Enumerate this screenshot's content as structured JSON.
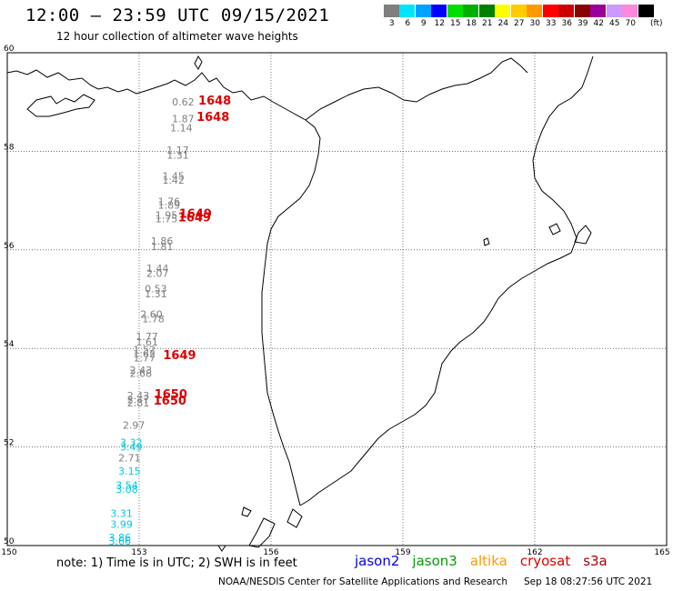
{
  "header": {
    "title": "12:00 – 23:59 UTC 09/15/2021",
    "subtitle": "12 hour collection of altimeter wave heights"
  },
  "color_scale": {
    "unit": "(ft)",
    "bins": [
      {
        "label": "3",
        "color": "#7f7f7f"
      },
      {
        "label": "6",
        "color": "#00e5ff"
      },
      {
        "label": "9",
        "color": "#00a2ff"
      },
      {
        "label": "12",
        "color": "#0000ff"
      },
      {
        "label": "15",
        "color": "#00dd00"
      },
      {
        "label": "18",
        "color": "#00b000"
      },
      {
        "label": "21",
        "color": "#008000"
      },
      {
        "label": "24",
        "color": "#ffff00"
      },
      {
        "label": "27",
        "color": "#ffcc00"
      },
      {
        "label": "30",
        "color": "#ff9900"
      },
      {
        "label": "33",
        "color": "#ff0000"
      },
      {
        "label": "36",
        "color": "#cc0000"
      },
      {
        "label": "39",
        "color": "#880000"
      },
      {
        "label": "42",
        "color": "#990099"
      },
      {
        "label": "45",
        "color": "#cc99ff"
      },
      {
        "label": "70",
        "color": "#ff88dd"
      },
      {
        "label": "",
        "color": "#000000"
      }
    ]
  },
  "axes": {
    "lon_ticks": [
      "150",
      "153",
      "156",
      "159",
      "162",
      "165"
    ],
    "lat_ticks": [
      "60",
      "58",
      "56",
      "54",
      "52",
      "50"
    ],
    "lon_range": [
      150,
      165
    ],
    "lat_range": [
      50,
      60
    ],
    "grid": true
  },
  "observations": [
    {
      "text": "0.62",
      "lon": 154.0,
      "lat": 58.93,
      "color": "#7f7f7f"
    },
    {
      "text": "1.87",
      "lon": 154.0,
      "lat": 58.59,
      "color": "#7f7f7f"
    },
    {
      "text": "1.14",
      "lon": 153.96,
      "lat": 58.4,
      "color": "#7f7f7f"
    },
    {
      "text": "1.17",
      "lon": 153.88,
      "lat": 57.95,
      "color": "#7f7f7f"
    },
    {
      "text": "1.31",
      "lon": 153.88,
      "lat": 57.85,
      "color": "#7f7f7f"
    },
    {
      "text": "1.45",
      "lon": 153.78,
      "lat": 57.43,
      "color": "#7f7f7f"
    },
    {
      "text": "1.42",
      "lon": 153.78,
      "lat": 57.34,
      "color": "#7f7f7f"
    },
    {
      "text": "1.76",
      "lon": 153.68,
      "lat": 56.91,
      "color": "#7f7f7f"
    },
    {
      "text": "1.89",
      "lon": 153.68,
      "lat": 56.84,
      "color": "#7f7f7f"
    },
    {
      "text": "1.95",
      "lon": 153.62,
      "lat": 56.63,
      "color": "#7f7f7f"
    },
    {
      "text": "1.75",
      "lon": 153.62,
      "lat": 56.56,
      "color": "#7f7f7f"
    },
    {
      "text": "1.86",
      "lon": 153.52,
      "lat": 56.11,
      "color": "#7f7f7f"
    },
    {
      "text": "1.81",
      "lon": 153.52,
      "lat": 56.0,
      "color": "#7f7f7f"
    },
    {
      "text": "1.44",
      "lon": 153.42,
      "lat": 55.55,
      "color": "#7f7f7f"
    },
    {
      "text": "2.07",
      "lon": 153.42,
      "lat": 55.45,
      "color": "#7f7f7f"
    },
    {
      "text": "0.53",
      "lon": 153.38,
      "lat": 55.14,
      "color": "#7f7f7f"
    },
    {
      "text": "1.31",
      "lon": 153.38,
      "lat": 55.04,
      "color": "#7f7f7f"
    },
    {
      "text": "2.60",
      "lon": 153.28,
      "lat": 54.62,
      "color": "#7f7f7f"
    },
    {
      "text": "1.78",
      "lon": 153.32,
      "lat": 54.53,
      "color": "#7f7f7f"
    },
    {
      "text": "1.77",
      "lon": 153.18,
      "lat": 54.17,
      "color": "#7f7f7f"
    },
    {
      "text": "1.61",
      "lon": 153.18,
      "lat": 54.06,
      "color": "#7f7f7f"
    },
    {
      "text": "1.52",
      "lon": 153.12,
      "lat": 53.9,
      "color": "#7f7f7f"
    },
    {
      "text": "1.62",
      "lon": 153.12,
      "lat": 53.82,
      "color": "#7f7f7f"
    },
    {
      "text": "1.77",
      "lon": 153.12,
      "lat": 53.74,
      "color": "#7f7f7f"
    },
    {
      "text": "2.43",
      "lon": 153.04,
      "lat": 53.49,
      "color": "#7f7f7f"
    },
    {
      "text": "2.68",
      "lon": 153.04,
      "lat": 53.42,
      "color": "#7f7f7f"
    },
    {
      "text": "2.43",
      "lon": 152.98,
      "lat": 52.97,
      "color": "#7f7f7f"
    },
    {
      "text": "2.47",
      "lon": 152.98,
      "lat": 52.89,
      "color": "#7f7f7f"
    },
    {
      "text": "2.81",
      "lon": 152.98,
      "lat": 52.82,
      "color": "#7f7f7f"
    },
    {
      "text": "2.97",
      "lon": 152.88,
      "lat": 52.37,
      "color": "#7f7f7f"
    },
    {
      "text": "3.32",
      "lon": 152.82,
      "lat": 52.02,
      "color": "#00c8e0"
    },
    {
      "text": "3.49",
      "lon": 152.82,
      "lat": 51.93,
      "color": "#00c8e0"
    },
    {
      "text": "2.71",
      "lon": 152.78,
      "lat": 51.71,
      "color": "#7f7f7f"
    },
    {
      "text": "3.15",
      "lon": 152.78,
      "lat": 51.44,
      "color": "#00c8e0"
    },
    {
      "text": "3.54",
      "lon": 152.72,
      "lat": 51.15,
      "color": "#00c8e0"
    },
    {
      "text": "3.08",
      "lon": 152.72,
      "lat": 51.07,
      "color": "#00c8e0"
    },
    {
      "text": "3.31",
      "lon": 152.6,
      "lat": 50.58,
      "color": "#00c8e0"
    },
    {
      "text": "3.99",
      "lon": 152.6,
      "lat": 50.36,
      "color": "#00c8e0"
    },
    {
      "text": "3.86",
      "lon": 152.56,
      "lat": 50.09,
      "color": "#00c8e0"
    },
    {
      "text": "3.66",
      "lon": 152.56,
      "lat": 50.02,
      "color": "#00c8e0"
    }
  ],
  "time_labels": [
    {
      "text": "1648",
      "lon": 154.72,
      "lat": 58.95,
      "color": "#dd0000"
    },
    {
      "text": "1648",
      "lon": 154.68,
      "lat": 58.62,
      "color": "#dd0000"
    },
    {
      "text": "1649",
      "lon": 154.28,
      "lat": 56.65,
      "color": "#dd0000"
    },
    {
      "text": "1649",
      "lon": 154.26,
      "lat": 56.58,
      "color": "#dd0000"
    },
    {
      "text": "1649",
      "lon": 153.92,
      "lat": 53.78,
      "color": "#dd0000"
    },
    {
      "text": "1650",
      "lon": 153.72,
      "lat": 52.99,
      "color": "#dd0000"
    },
    {
      "text": "1650",
      "lon": 153.7,
      "lat": 52.86,
      "color": "#dd0000"
    }
  ],
  "footer": {
    "note": "note: 1) Time is in UTC; 2) SWH is in feet",
    "satellites": [
      {
        "name": "jason2",
        "color": "#0000ee"
      },
      {
        "name": "jason3",
        "color": "#00a000"
      },
      {
        "name": "altika",
        "color": "#ff9900"
      },
      {
        "name": "cryosat",
        "color": "#dd0000"
      },
      {
        "name": "s3a",
        "color": "#aa0000"
      }
    ],
    "credit": "NOAA/NESDIS Center for Satellite Applications and Research",
    "date": "Sep 18 08:27:56 UTC 2021"
  }
}
